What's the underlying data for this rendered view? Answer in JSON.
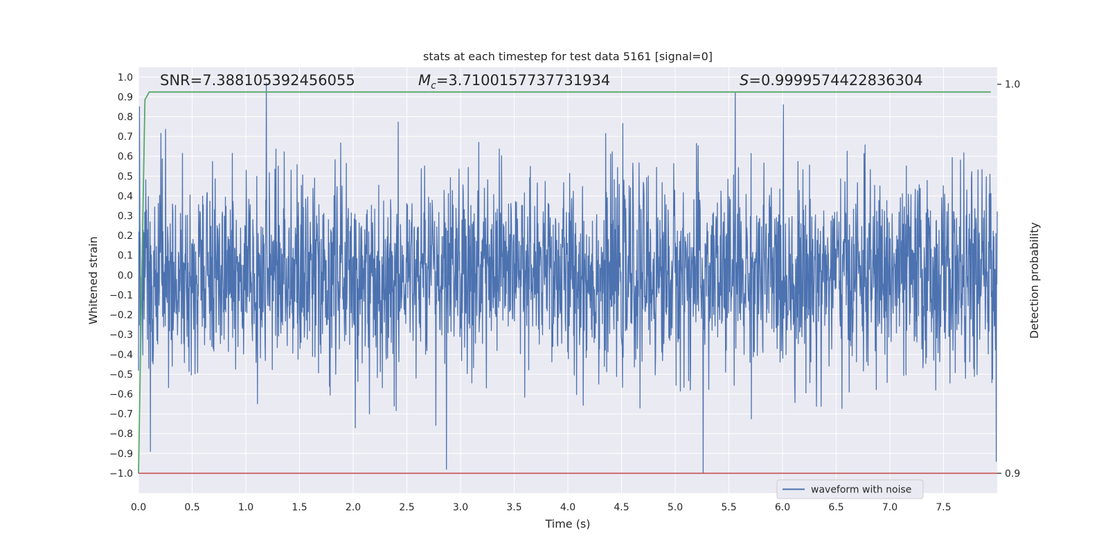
{
  "chart_data": {
    "type": "line",
    "title": "stats at each timestep for test data 5161 [signal=0]",
    "xlabel": "Time (s)",
    "ylabel": "Whitened strain",
    "y2label": "Detection probability",
    "xlim": [
      0.0,
      8.0
    ],
    "ylim": [
      -1.1,
      1.05
    ],
    "y2lim": [
      0.9,
      1.0
    ],
    "x_ticks": [
      "0.0",
      "0.5",
      "1.0",
      "1.5",
      "2.0",
      "2.5",
      "3.0",
      "3.5",
      "4.0",
      "4.5",
      "5.0",
      "5.5",
      "6.0",
      "6.5",
      "7.0",
      "7.5"
    ],
    "y_ticks": [
      "1.0",
      "0.9",
      "0.8",
      "0.7",
      "0.6",
      "0.5",
      "0.4",
      "0.3",
      "0.2",
      "0.1",
      "0.0",
      "−0.1",
      "−0.2",
      "−0.3",
      "−0.4",
      "−0.5",
      "−0.6",
      "−0.7",
      "−0.8",
      "−0.9",
      "−1.0"
    ],
    "y2_ticks": [
      "1.0",
      "0.9"
    ],
    "grid": true,
    "legend_position": "bottom-right",
    "annotations": {
      "snr": "SNR=7.388105392456055",
      "mc_symbol": "M",
      "mc_sub": "c",
      "mc_value": "=3.7100157737731934",
      "s_symbol": "S",
      "s_value": "=0.9999574422836304"
    },
    "series": [
      {
        "name": "waveform with noise",
        "color": "#4c72b0",
        "axis": "left",
        "description_points": {
          "x": [
            0.0,
            2.0,
            4.0,
            6.0,
            8.0
          ],
          "y_envelope_high": [
            0.6,
            0.7,
            0.7,
            0.7,
            0.7
          ],
          "y_envelope_low": [
            -0.6,
            -0.6,
            -0.6,
            -0.6,
            -0.6
          ]
        },
        "notable_peaks": [
          {
            "x": 0.01,
            "y": 0.85
          },
          {
            "x": 0.11,
            "y": -0.89
          },
          {
            "x": 1.19,
            "y": 0.97
          },
          {
            "x": 2.87,
            "y": -0.98
          },
          {
            "x": 5.26,
            "y": -1.0
          },
          {
            "x": 5.56,
            "y": 0.92
          },
          {
            "x": 7.99,
            "y": -0.94
          }
        ]
      },
      {
        "name": "",
        "color": "#55a868",
        "axis": "right",
        "x": [
          0.0,
          0.03,
          0.06,
          0.1,
          0.2,
          1.0,
          4.0,
          7.94
        ],
        "y": [
          0.9,
          0.95,
          0.996,
          0.998,
          0.998,
          0.998,
          0.998,
          0.998
        ]
      },
      {
        "name": "",
        "color": "#c44e52",
        "axis": "left",
        "x": [
          0.0,
          8.0
        ],
        "y": [
          -1.0,
          -1.0
        ]
      }
    ]
  },
  "legend": {
    "label": "waveform with noise"
  }
}
